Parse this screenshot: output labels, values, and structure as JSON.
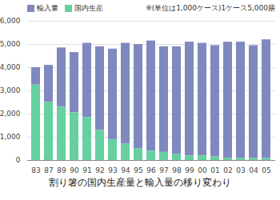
{
  "chart_data": {
    "type": "bar",
    "title": "割り箸の国内生産量と輸入量の移り変わり",
    "annotation": "※(単位は1,000ケース)1ケース5,000膳",
    "stacked": true,
    "grid": true,
    "legend": "top",
    "categories": [
      "83",
      "87",
      "89",
      "90",
      "91",
      "92",
      "93",
      "94",
      "95",
      "96",
      "97",
      "98",
      "99",
      "00",
      "01",
      "02",
      "03",
      "04",
      "05"
    ],
    "series": [
      {
        "name": "輸入量",
        "color": "#8088c0",
        "values": [
          750,
          1600,
          2550,
          2600,
          3200,
          3600,
          3900,
          4350,
          4500,
          4750,
          4550,
          4650,
          4900,
          4850,
          4800,
          5000,
          5000,
          4870,
          5120
        ]
      },
      {
        "name": "国内生産",
        "color": "#66d0a0",
        "values": [
          3250,
          2500,
          2300,
          2050,
          1850,
          1300,
          900,
          700,
          500,
          400,
          350,
          250,
          200,
          200,
          150,
          100,
          100,
          80,
          80
        ]
      }
    ],
    "ylim": [
      0,
      6000
    ],
    "yticks": [
      0,
      {
        "value": 1000,
        "label": "1,000"
      },
      {
        "value": 2000,
        "label": "2,000"
      },
      {
        "value": 3000,
        "label": "3,000"
      },
      {
        "value": 4000,
        "label": "4,000"
      },
      {
        "value": 5000,
        "label": "5,000"
      },
      {
        "value": 6000,
        "label": "6,000"
      }
    ]
  }
}
